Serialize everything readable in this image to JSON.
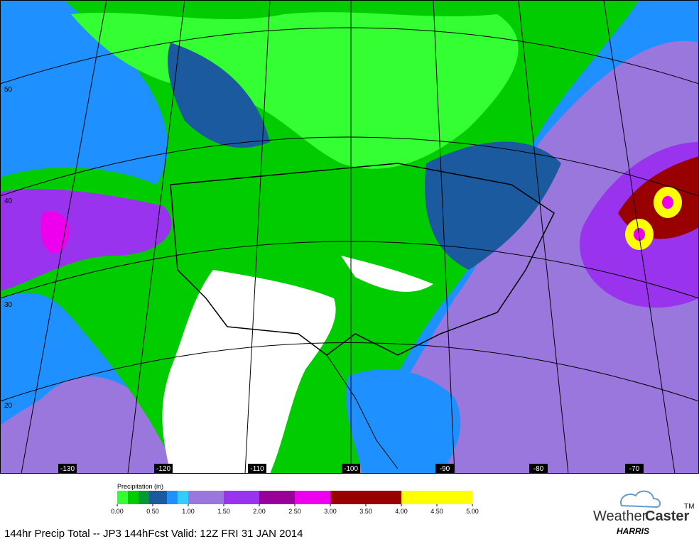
{
  "map": {
    "lat_labels": [
      "50",
      "40",
      "30",
      "20"
    ],
    "lon_labels": [
      "-130",
      "-120",
      "-110",
      "-100",
      "-90",
      "-80",
      "-70"
    ]
  },
  "legend": {
    "title": "Precipitation (in)",
    "ticks": [
      {
        "value": 0,
        "label": "0.00"
      },
      {
        "value": 0.5,
        "label": "0.50"
      },
      {
        "value": 1,
        "label": "1.00"
      },
      {
        "value": 1.5,
        "label": "1.50"
      },
      {
        "value": 2,
        "label": "2.00"
      },
      {
        "value": 2.5,
        "label": "2.50"
      },
      {
        "value": 3,
        "label": "3.00"
      },
      {
        "value": 3.5,
        "label": "3.50"
      },
      {
        "value": 4,
        "label": "4.00"
      },
      {
        "value": 4.5,
        "label": "4.50"
      },
      {
        "value": 5,
        "label": "5.00"
      }
    ],
    "bins": [
      0,
      0.15,
      0.3,
      0.45,
      0.7,
      0.85,
      1,
      1.5,
      2,
      2.5,
      3,
      4,
      5
    ],
    "colors": [
      "#33ff33",
      "#00cc00",
      "#009933",
      "#1c5aa0",
      "#1e90ff",
      "#33ccff",
      "#9977dd",
      "#9933ee",
      "#990099",
      "#ee00ee",
      "#990000",
      "#ffff00"
    ]
  },
  "caption": "144hr Precip Total -- JP3 144hFcst Valid: 12Z FRI 31 JAN 2014",
  "logo": {
    "weather": "Weather",
    "caster": "Caster",
    "tm": "TM",
    "brand": "HARRIS"
  }
}
